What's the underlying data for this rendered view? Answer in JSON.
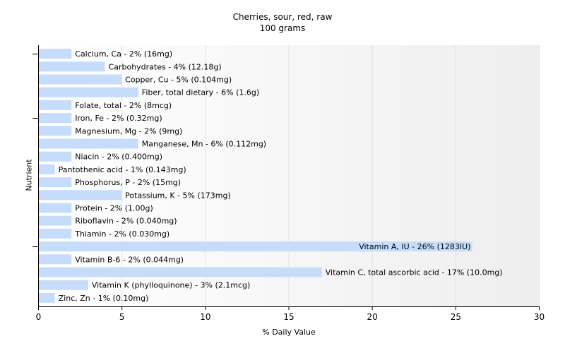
{
  "chart_data": {
    "type": "bar",
    "orientation": "horizontal",
    "title": "Cherries, sour, red, raw",
    "subtitle": "100 grams",
    "xlabel": "% Daily Value",
    "ylabel": "Nutrient",
    "xlim": [
      0,
      30
    ],
    "xticks": [
      0,
      5,
      10,
      15,
      20,
      25,
      30
    ],
    "grid": true,
    "bar_color": "#c6dcfb",
    "categories": [
      "Calcium, Ca",
      "Carbohydrates",
      "Copper, Cu",
      "Fiber, total dietary",
      "Folate, total",
      "Iron, Fe",
      "Magnesium, Mg",
      "Manganese, Mn",
      "Niacin",
      "Pantothenic acid",
      "Phosphorus, P",
      "Potassium, K",
      "Protein",
      "Riboflavin",
      "Thiamin",
      "Vitamin A, IU",
      "Vitamin B-6",
      "Vitamin C, total ascorbic acid",
      "Vitamin K (phylloquinone)",
      "Zinc, Zn"
    ],
    "values": [
      2,
      4,
      5,
      6,
      2,
      2,
      2,
      6,
      2,
      1,
      2,
      5,
      2,
      2,
      2,
      26,
      2,
      17,
      3,
      1
    ],
    "labels": [
      "Calcium, Ca - 2% (16mg)",
      "Carbohydrates - 4% (12.18g)",
      "Copper, Cu - 5% (0.104mg)",
      "Fiber, total dietary - 6% (1.6g)",
      "Folate, total - 2% (8mcg)",
      "Iron, Fe - 2% (0.32mg)",
      "Magnesium, Mg - 2% (9mg)",
      "Manganese, Mn - 6% (0.112mg)",
      "Niacin - 2% (0.400mg)",
      "Pantothenic acid - 1% (0.143mg)",
      "Phosphorus, P - 2% (15mg)",
      "Potassium, K - 5% (173mg)",
      "Protein - 2% (1.00g)",
      "Riboflavin - 2% (0.040mg)",
      "Thiamin - 2% (0.030mg)",
      "Vitamin A, IU - 26% (1283IU)",
      "Vitamin B-6 - 2% (0.044mg)",
      "Vitamin C, total ascorbic acid - 17% (10.0mg)",
      "Vitamin K (phylloquinone) - 3% (2.1mcg)",
      "Zinc, Zn - 1% (0.10mg)"
    ]
  }
}
